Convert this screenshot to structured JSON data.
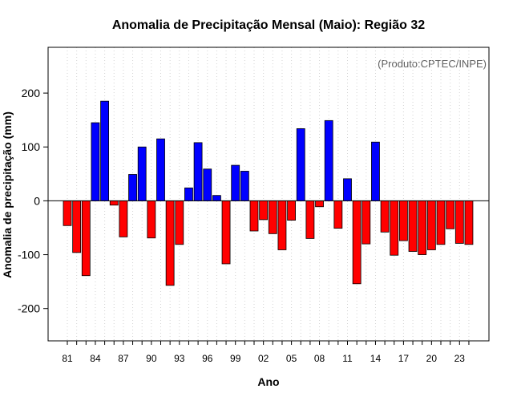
{
  "chart_data": {
    "type": "bar",
    "title": "Anomalia de Precipitação Mensal (Maio): Região 32",
    "xlabel": "Ano",
    "ylabel": "Anomalia de precipitação (mm)",
    "credit": "(Produto:CPTEC/INPE)",
    "ylim": [
      -260,
      285
    ],
    "yticks": [
      -200,
      -100,
      0,
      100,
      200
    ],
    "grid": "vertical-dotted",
    "positive_color": "#0000ff",
    "negative_color": "#ff0000",
    "categories": [
      "1981",
      "1982",
      "1983",
      "1984",
      "1985",
      "1986",
      "1987",
      "1988",
      "1989",
      "1990",
      "1991",
      "1992",
      "1993",
      "1994",
      "1995",
      "1996",
      "1997",
      "1998",
      "1999",
      "2000",
      "2001",
      "2002",
      "2003",
      "2004",
      "2005",
      "2006",
      "2007",
      "2008",
      "2009",
      "2010",
      "2011",
      "2012",
      "2013",
      "2014",
      "2015",
      "2016",
      "2017",
      "2018",
      "2019",
      "2020",
      "2021",
      "2022",
      "2023",
      "2024"
    ],
    "tick_labels": [
      "81",
      "84",
      "87",
      "90",
      "93",
      "96",
      "99",
      "02",
      "05",
      "08",
      "11",
      "14",
      "17",
      "20",
      "23"
    ],
    "tick_indices": [
      0,
      3,
      6,
      9,
      12,
      15,
      18,
      21,
      24,
      27,
      30,
      33,
      36,
      39,
      42
    ],
    "values": [
      -46,
      -96,
      -139,
      145,
      185,
      -8,
      -67,
      49,
      100,
      -69,
      115,
      -157,
      -81,
      24,
      108,
      59,
      10,
      -117,
      66,
      55,
      -56,
      -35,
      -61,
      -91,
      -36,
      134,
      -70,
      -11,
      149,
      -51,
      41,
      -154,
      -80,
      109,
      -58,
      -101,
      -74,
      -94,
      -100,
      -91,
      -81,
      -52,
      -79,
      -81
    ]
  }
}
